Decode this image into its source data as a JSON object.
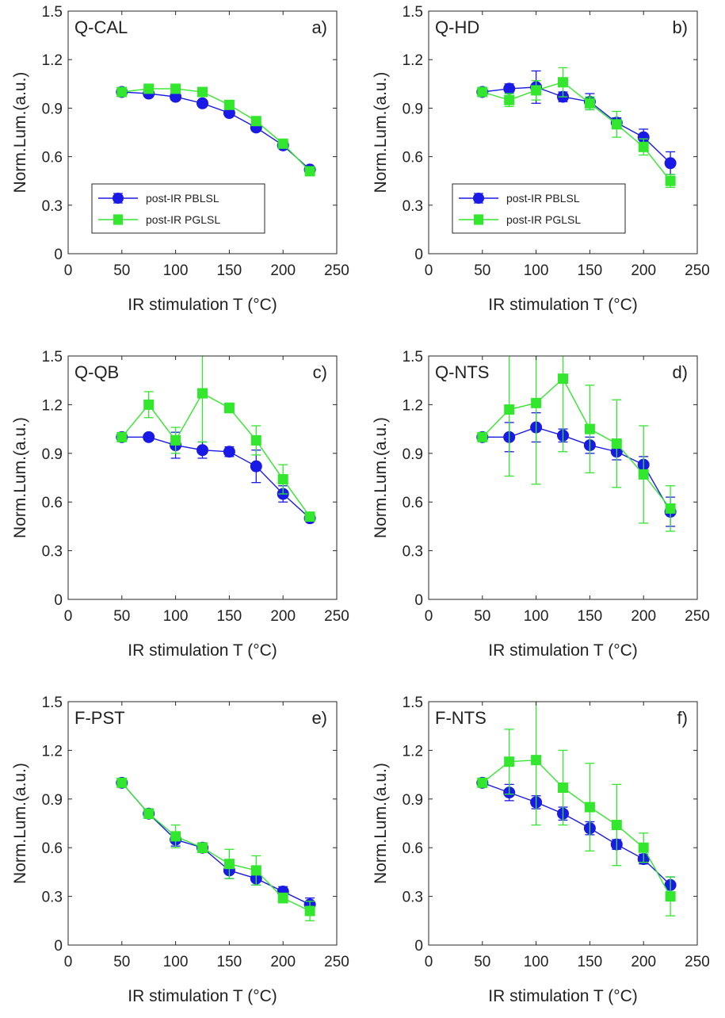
{
  "figure": {
    "colors": {
      "post-IR PBLSL": "#1a1ae6",
      "post-IR PGLSL": "#33e62e",
      "axis": "#262626",
      "text": "#222222"
    }
  },
  "chart_data": [
    {
      "type": "scatter",
      "panel_name": "Q-CAL",
      "panel_letter": "a)",
      "xlabel": "IR stimulation T (°C)",
      "ylabel": "Norm.Lum.(a.u.)",
      "xlim": [
        0,
        250
      ],
      "ylim": [
        0,
        1.5
      ],
      "xticks": [
        "0",
        "50",
        "100",
        "150",
        "200",
        "250"
      ],
      "yticks": [
        "0",
        "0.3",
        "0.6",
        "0.9",
        "1.2",
        "1.5"
      ],
      "legend": {
        "entries": [
          "post-IR PBLSL",
          "post-IR PGLSL"
        ],
        "position": "lower-left"
      },
      "series": [
        {
          "name": "post-IR PBLSL",
          "marker": "circle",
          "x": [
            50,
            75,
            100,
            125,
            150,
            175,
            200,
            225
          ],
          "y": [
            1.0,
            0.99,
            0.97,
            0.93,
            0.87,
            0.78,
            0.67,
            0.52
          ],
          "err": [
            0.02,
            0.02,
            0.02,
            0.02,
            0.02,
            0.02,
            0.02,
            0.02
          ]
        },
        {
          "name": "post-IR PGLSL",
          "marker": "square",
          "x": [
            50,
            75,
            100,
            125,
            150,
            175,
            200,
            225
          ],
          "y": [
            1.0,
            1.02,
            1.02,
            1.0,
            0.92,
            0.82,
            0.68,
            0.51
          ],
          "err": [
            0.02,
            0.02,
            0.02,
            0.02,
            0.02,
            0.02,
            0.02,
            0.02
          ]
        }
      ]
    },
    {
      "type": "scatter",
      "panel_name": "Q-HD",
      "panel_letter": "b)",
      "xlabel": "IR stimulation T (°C)",
      "ylabel": "Norm.Lum.(a.u.)",
      "xlim": [
        0,
        250
      ],
      "ylim": [
        0,
        1.5
      ],
      "xticks": [
        "0",
        "50",
        "100",
        "150",
        "200",
        "250"
      ],
      "yticks": [
        "0",
        "0.3",
        "0.6",
        "0.9",
        "1.2",
        "1.5"
      ],
      "legend": {
        "entries": [
          "post-IR PBLSL",
          "post-IR PGLSL"
        ],
        "position": "lower-left"
      },
      "series": [
        {
          "name": "post-IR PBLSL",
          "marker": "circle",
          "x": [
            50,
            75,
            100,
            125,
            150,
            175,
            200,
            225
          ],
          "y": [
            1.0,
            1.02,
            1.03,
            0.97,
            0.94,
            0.81,
            0.72,
            0.56
          ],
          "err": [
            0.02,
            0.03,
            0.1,
            0.03,
            0.05,
            0.03,
            0.05,
            0.07
          ]
        },
        {
          "name": "post-IR PGLSL",
          "marker": "square",
          "x": [
            50,
            75,
            100,
            125,
            150,
            175,
            200,
            225
          ],
          "y": [
            1.0,
            0.95,
            1.01,
            1.06,
            0.93,
            0.8,
            0.66,
            0.45
          ],
          "err": [
            0.02,
            0.04,
            0.06,
            0.09,
            0.04,
            0.08,
            0.05,
            0.04
          ]
        }
      ]
    },
    {
      "type": "scatter",
      "panel_name": "Q-QB",
      "panel_letter": "c)",
      "xlabel": "IR stimulation T (°C)",
      "ylabel": "Norm.Lum.(a.u.)",
      "xlim": [
        0,
        250
      ],
      "ylim": [
        0,
        1.5
      ],
      "xticks": [
        "0",
        "50",
        "100",
        "150",
        "200",
        "250"
      ],
      "yticks": [
        "0",
        "0.3",
        "0.6",
        "0.9",
        "1.2",
        "1.5"
      ],
      "series": [
        {
          "name": "post-IR PBLSL",
          "marker": "circle",
          "x": [
            50,
            75,
            100,
            125,
            150,
            175,
            200,
            225
          ],
          "y": [
            1.0,
            1.0,
            0.95,
            0.92,
            0.91,
            0.82,
            0.65,
            0.5
          ],
          "err": [
            0.02,
            0.02,
            0.08,
            0.05,
            0.03,
            0.1,
            0.05,
            0.02
          ]
        },
        {
          "name": "post-IR PGLSL",
          "marker": "square",
          "x": [
            50,
            75,
            100,
            125,
            150,
            175,
            200,
            225
          ],
          "y": [
            1.0,
            1.2,
            0.98,
            1.27,
            1.18,
            0.98,
            0.74,
            0.51
          ],
          "err": [
            0.02,
            0.08,
            0.08,
            0.3,
            0.03,
            0.09,
            0.09,
            0.02
          ]
        }
      ]
    },
    {
      "type": "scatter",
      "panel_name": "Q-NTS",
      "panel_letter": "d)",
      "xlabel": "IR stimulation T (°C)",
      "ylabel": "Norm.Lum.(a.u.)",
      "xlim": [
        0,
        250
      ],
      "ylim": [
        0,
        1.5
      ],
      "xticks": [
        "0",
        "50",
        "100",
        "150",
        "200",
        "250"
      ],
      "yticks": [
        "0",
        "0.3",
        "0.6",
        "0.9",
        "1.2",
        "1.5"
      ],
      "series": [
        {
          "name": "post-IR PBLSL",
          "marker": "circle",
          "x": [
            50,
            75,
            100,
            125,
            150,
            175,
            200,
            225
          ],
          "y": [
            1.0,
            1.0,
            1.06,
            1.01,
            0.95,
            0.91,
            0.83,
            0.54
          ],
          "err": [
            0.02,
            0.09,
            0.09,
            0.04,
            0.05,
            0.05,
            0.05,
            0.09
          ]
        },
        {
          "name": "post-IR PGLSL",
          "marker": "square",
          "x": [
            50,
            75,
            100,
            125,
            150,
            175,
            200,
            225
          ],
          "y": [
            1.0,
            1.17,
            1.21,
            1.36,
            1.05,
            0.96,
            0.77,
            0.56
          ],
          "err": [
            0.02,
            0.41,
            0.5,
            0.45,
            0.27,
            0.27,
            0.3,
            0.14
          ]
        }
      ]
    },
    {
      "type": "scatter",
      "panel_name": "F-PST",
      "panel_letter": "e)",
      "xlabel": "IR stimulation T (°C)",
      "ylabel": "Norm.Lum.(a.u.)",
      "xlim": [
        0,
        250
      ],
      "ylim": [
        0,
        1.5
      ],
      "xticks": [
        "0",
        "50",
        "100",
        "150",
        "200",
        "250"
      ],
      "yticks": [
        "0",
        "0.3",
        "0.6",
        "0.9",
        "1.2",
        "1.5"
      ],
      "series": [
        {
          "name": "post-IR PBLSL",
          "marker": "circle",
          "x": [
            50,
            75,
            100,
            125,
            150,
            175,
            200,
            225
          ],
          "y": [
            1.0,
            0.81,
            0.65,
            0.6,
            0.46,
            0.41,
            0.33,
            0.25
          ],
          "err": [
            0.02,
            0.03,
            0.04,
            0.03,
            0.05,
            0.04,
            0.03,
            0.04
          ]
        },
        {
          "name": "post-IR PGLSL",
          "marker": "square",
          "x": [
            50,
            75,
            100,
            125,
            150,
            175,
            200,
            225
          ],
          "y": [
            1.0,
            0.81,
            0.67,
            0.6,
            0.5,
            0.46,
            0.29,
            0.21
          ],
          "err": [
            0.02,
            0.03,
            0.07,
            0.03,
            0.09,
            0.09,
            0.03,
            0.06
          ]
        }
      ]
    },
    {
      "type": "scatter",
      "panel_name": "F-NTS",
      "panel_letter": "f)",
      "xlabel": "IR stimulation T (°C)",
      "ylabel": "Norm.Lum.(a.u.)",
      "xlim": [
        0,
        250
      ],
      "ylim": [
        0,
        1.5
      ],
      "xticks": [
        "0",
        "50",
        "100",
        "150",
        "200",
        "250"
      ],
      "yticks": [
        "0",
        "0.3",
        "0.6",
        "0.9",
        "1.2",
        "1.5"
      ],
      "series": [
        {
          "name": "post-IR PBLSL",
          "marker": "circle",
          "x": [
            50,
            75,
            100,
            125,
            150,
            175,
            200,
            225
          ],
          "y": [
            1.0,
            0.94,
            0.88,
            0.81,
            0.72,
            0.62,
            0.53,
            0.37
          ],
          "err": [
            0.02,
            0.05,
            0.04,
            0.04,
            0.04,
            0.03,
            0.03,
            0.05
          ]
        },
        {
          "name": "post-IR PGLSL",
          "marker": "square",
          "x": [
            50,
            75,
            100,
            125,
            150,
            175,
            200,
            225
          ],
          "y": [
            1.0,
            1.13,
            1.14,
            0.97,
            0.85,
            0.74,
            0.6,
            0.3
          ],
          "err": [
            0.02,
            0.2,
            0.4,
            0.23,
            0.27,
            0.25,
            0.09,
            0.12
          ]
        }
      ]
    }
  ]
}
